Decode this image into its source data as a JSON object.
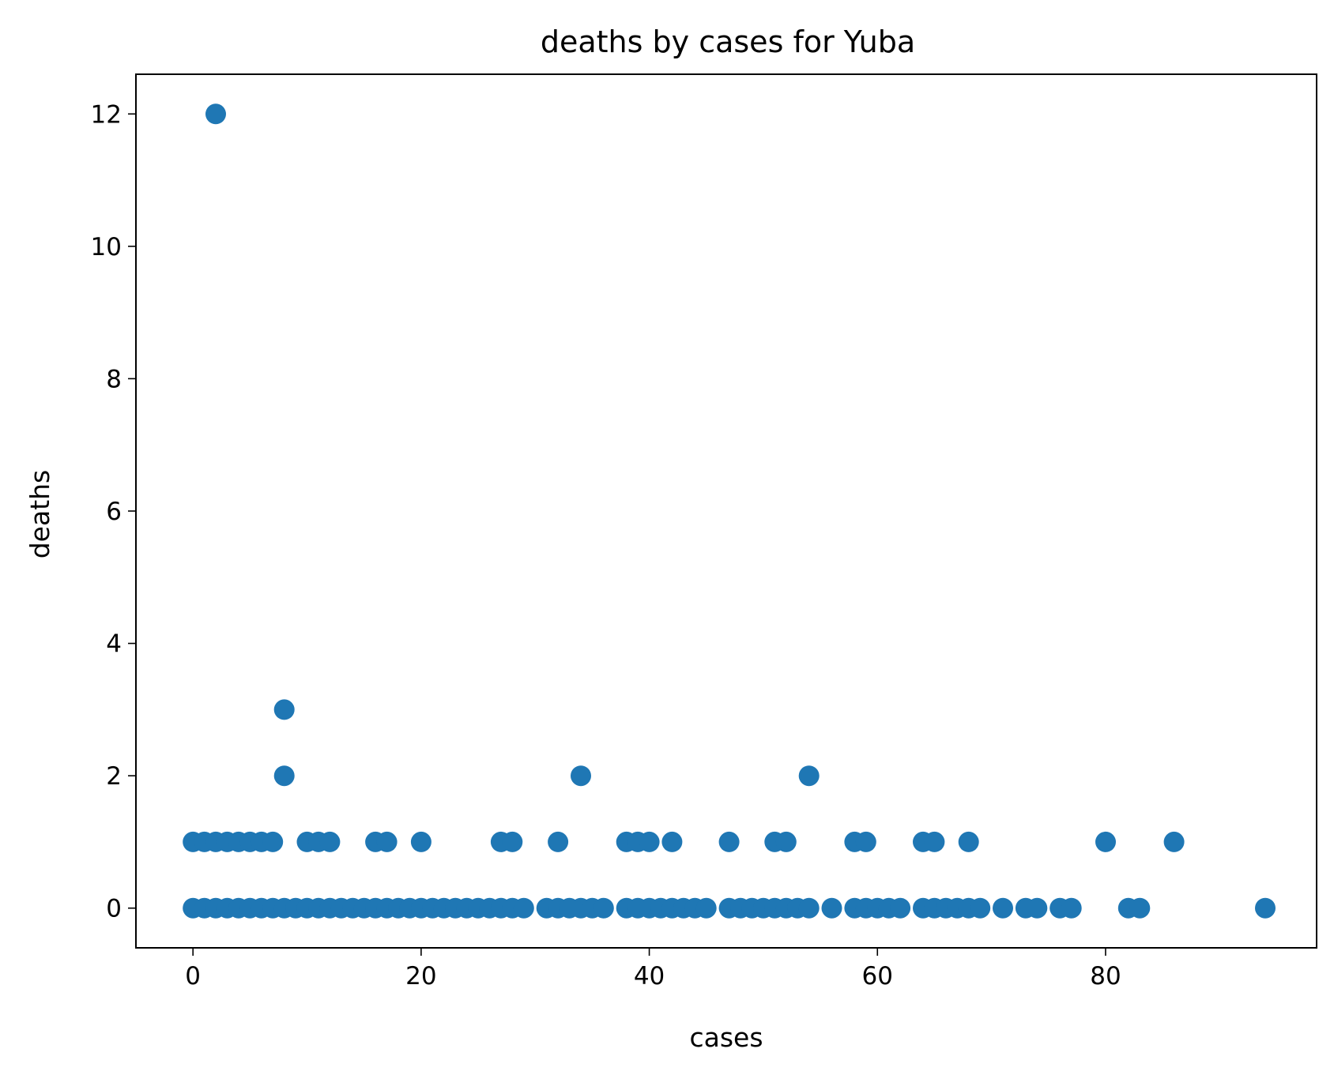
{
  "chart_data": {
    "type": "scatter",
    "title": "deaths by cases for Yuba",
    "xlabel": "cases",
    "ylabel": "deaths",
    "xlim": [
      -5,
      98.5
    ],
    "ylim": [
      -0.6,
      12.6
    ],
    "xticks": [
      0,
      20,
      40,
      60,
      80
    ],
    "yticks": [
      0,
      2,
      4,
      6,
      8,
      10,
      12
    ],
    "grid": false,
    "marker_color": "#1f77b4",
    "series": [
      {
        "points": [
          [
            0,
            0
          ],
          [
            1,
            0
          ],
          [
            2,
            0
          ],
          [
            3,
            0
          ],
          [
            4,
            0
          ],
          [
            5,
            0
          ],
          [
            6,
            0
          ],
          [
            7,
            0
          ],
          [
            8,
            0
          ],
          [
            9,
            0
          ],
          [
            10,
            0
          ],
          [
            11,
            0
          ],
          [
            12,
            0
          ],
          [
            13,
            0
          ],
          [
            14,
            0
          ],
          [
            15,
            0
          ],
          [
            16,
            0
          ],
          [
            17,
            0
          ],
          [
            18,
            0
          ],
          [
            19,
            0
          ],
          [
            20,
            0
          ],
          [
            21,
            0
          ],
          [
            22,
            0
          ],
          [
            23,
            0
          ],
          [
            24,
            0
          ],
          [
            25,
            0
          ],
          [
            26,
            0
          ],
          [
            27,
            0
          ],
          [
            28,
            0
          ],
          [
            29,
            0
          ],
          [
            31,
            0
          ],
          [
            32,
            0
          ],
          [
            33,
            0
          ],
          [
            34,
            0
          ],
          [
            35,
            0
          ],
          [
            36,
            0
          ],
          [
            38,
            0
          ],
          [
            39,
            0
          ],
          [
            40,
            0
          ],
          [
            41,
            0
          ],
          [
            42,
            0
          ],
          [
            43,
            0
          ],
          [
            44,
            0
          ],
          [
            45,
            0
          ],
          [
            47,
            0
          ],
          [
            48,
            0
          ],
          [
            49,
            0
          ],
          [
            50,
            0
          ],
          [
            51,
            0
          ],
          [
            52,
            0
          ],
          [
            53,
            0
          ],
          [
            54,
            0
          ],
          [
            56,
            0
          ],
          [
            58,
            0
          ],
          [
            59,
            0
          ],
          [
            60,
            0
          ],
          [
            61,
            0
          ],
          [
            62,
            0
          ],
          [
            64,
            0
          ],
          [
            65,
            0
          ],
          [
            66,
            0
          ],
          [
            67,
            0
          ],
          [
            68,
            0
          ],
          [
            69,
            0
          ],
          [
            71,
            0
          ],
          [
            73,
            0
          ],
          [
            74,
            0
          ],
          [
            76,
            0
          ],
          [
            77,
            0
          ],
          [
            82,
            0
          ],
          [
            83,
            0
          ],
          [
            94,
            0
          ],
          [
            0,
            1
          ],
          [
            1,
            1
          ],
          [
            2,
            1
          ],
          [
            3,
            1
          ],
          [
            4,
            1
          ],
          [
            5,
            1
          ],
          [
            6,
            1
          ],
          [
            7,
            1
          ],
          [
            10,
            1
          ],
          [
            11,
            1
          ],
          [
            12,
            1
          ],
          [
            16,
            1
          ],
          [
            17,
            1
          ],
          [
            20,
            1
          ],
          [
            27,
            1
          ],
          [
            28,
            1
          ],
          [
            32,
            1
          ],
          [
            38,
            1
          ],
          [
            39,
            1
          ],
          [
            40,
            1
          ],
          [
            42,
            1
          ],
          [
            47,
            1
          ],
          [
            51,
            1
          ],
          [
            52,
            1
          ],
          [
            58,
            1
          ],
          [
            59,
            1
          ],
          [
            64,
            1
          ],
          [
            65,
            1
          ],
          [
            68,
            1
          ],
          [
            80,
            1
          ],
          [
            86,
            1
          ],
          [
            8,
            2
          ],
          [
            34,
            2
          ],
          [
            54,
            2
          ],
          [
            8,
            3
          ],
          [
            2,
            12
          ]
        ]
      }
    ]
  }
}
